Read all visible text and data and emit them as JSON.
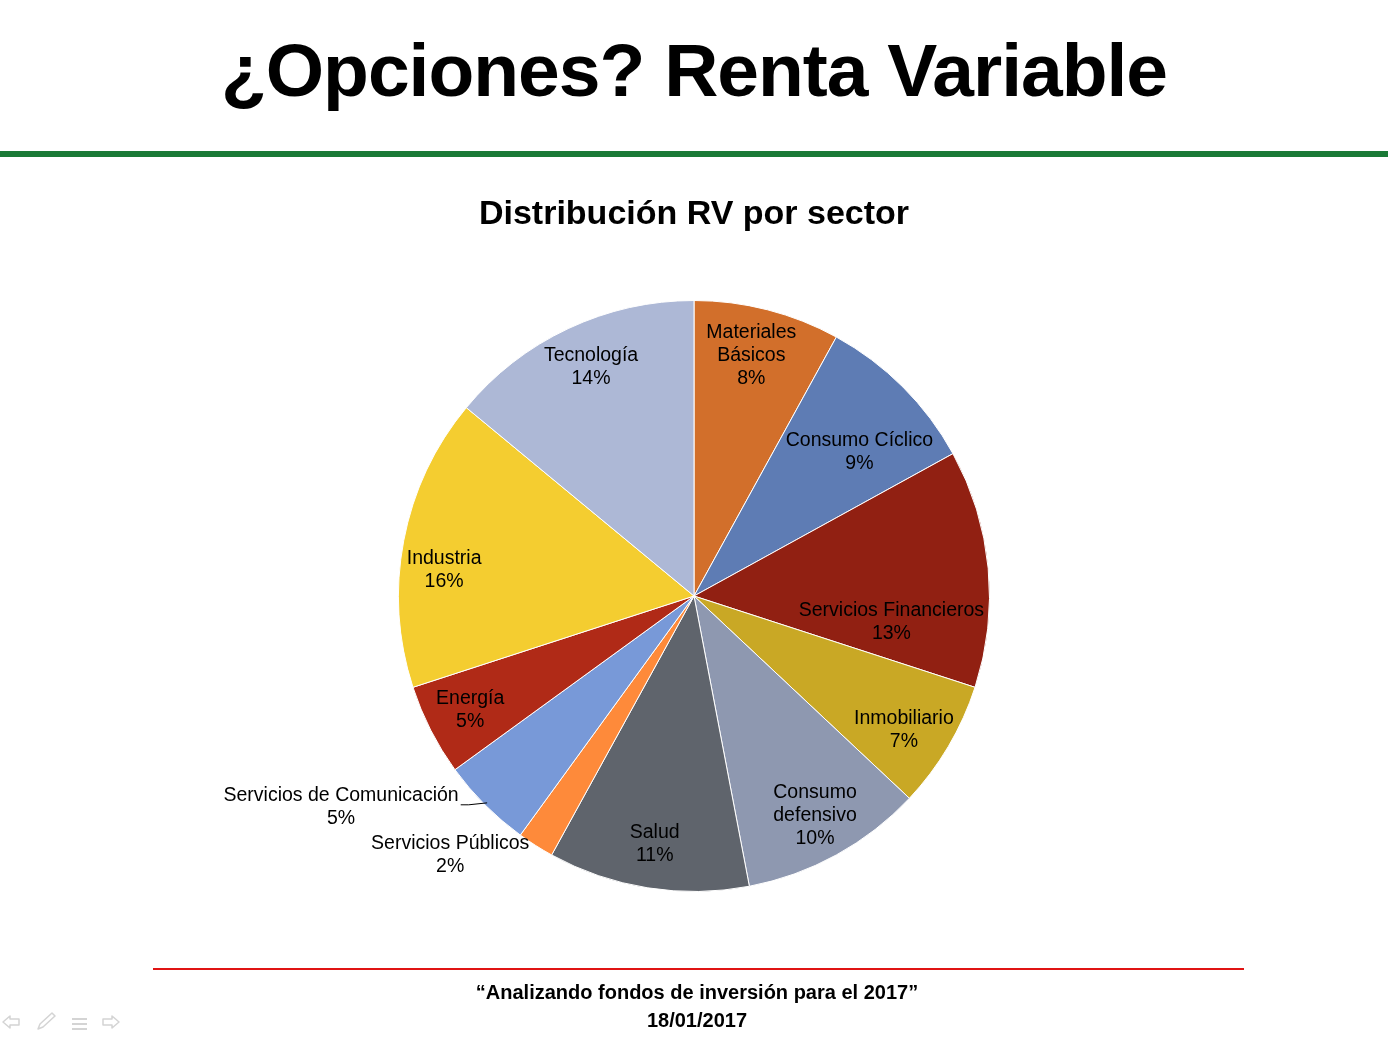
{
  "chart_data": {
    "type": "pie",
    "title": "¿Opciones? Renta Variable",
    "subtitle": "Distribución RV por sector",
    "categories": [
      "Materiales Básicos",
      "Consumo Cíclico",
      "Servicios Financieros",
      "Inmobiliario",
      "Consumo defensivo",
      "Salud",
      "Servicios Públicos",
      "Servicios de Comunicación",
      "Energía",
      "Industria",
      "Tecnología"
    ],
    "values": [
      8,
      9,
      13,
      7,
      10,
      11,
      2,
      5,
      5,
      16,
      14
    ],
    "value_labels": [
      "8%",
      "9%",
      "13%",
      "7%",
      "10%",
      "11%",
      "2%",
      "5%",
      "5%",
      "16%",
      "14%"
    ],
    "colors": [
      "#d26f2b",
      "#5e7cb4",
      "#912012",
      "#c9a825",
      "#8e98b0",
      "#5f646c",
      "#fe8a3a",
      "#7899d8",
      "#b02a17",
      "#f4cd30",
      "#adb8d6"
    ],
    "legend": false,
    "annotations": [
      "“Analizando fondos de inversión para el 2017”",
      "18/01/2017"
    ]
  }
}
